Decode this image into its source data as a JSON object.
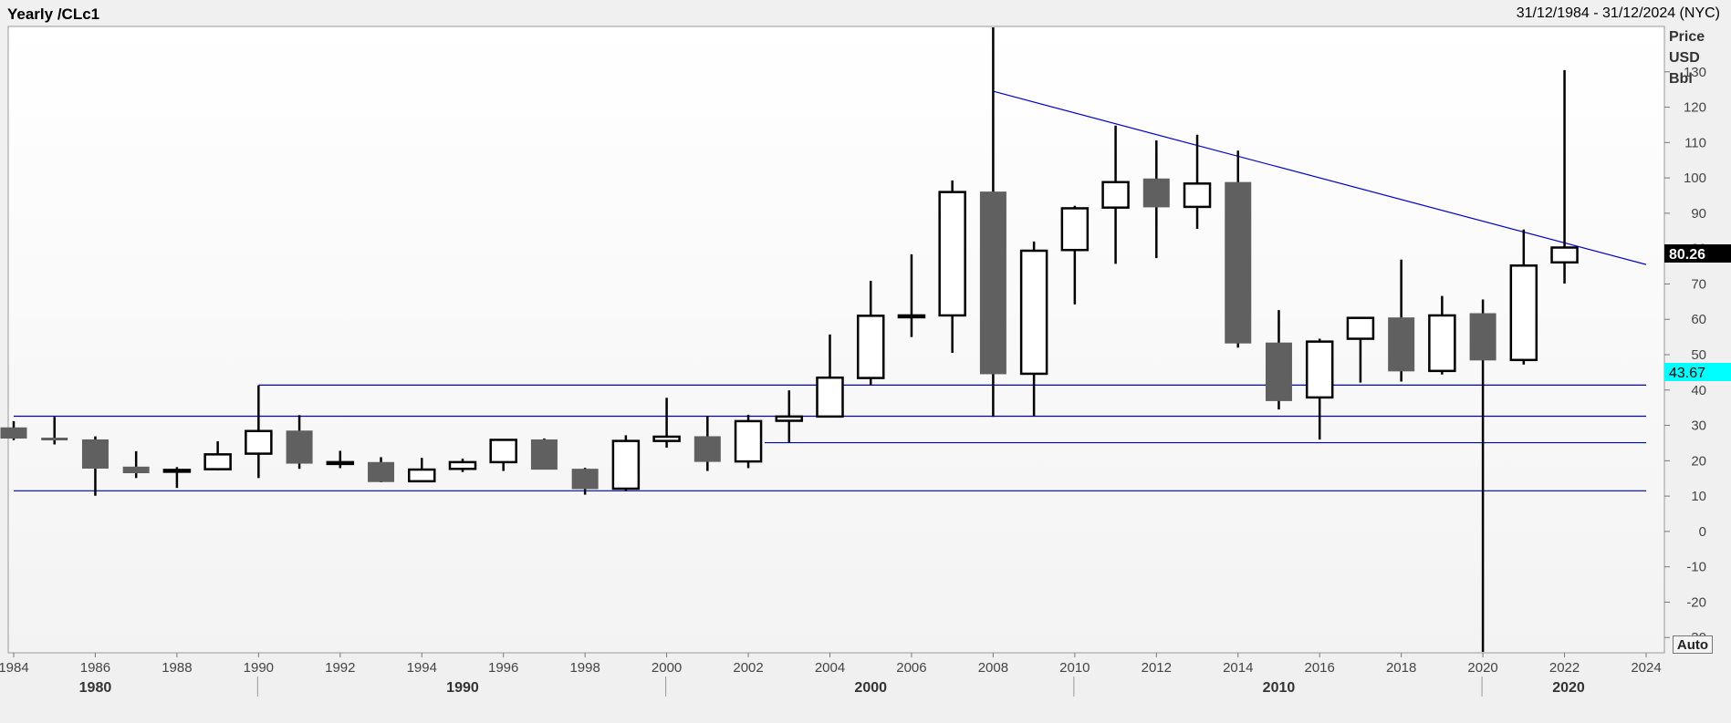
{
  "header": {
    "title": "Yearly /CLc1",
    "date_range": "31/12/1984 - 31/12/2024 (NYC)"
  },
  "yaxis": {
    "unit_lines": [
      "Price",
      "USD",
      "Bbl"
    ],
    "auto_label": "Auto"
  },
  "badges": {
    "last_price": {
      "label": "80.26",
      "value": 80.26,
      "bg": "#000000",
      "fg": "#ffffff"
    },
    "marker": {
      "label": "43.67",
      "value": 43.67,
      "bg": "#00ffff",
      "fg": "#000000"
    }
  },
  "colors": {
    "up_fill": "#ffffff",
    "down_fill": "#606060",
    "wick": "#000000",
    "trendline": "#0000cd",
    "support": "#0000b4"
  },
  "chart_data": {
    "type": "candlestick",
    "title": "Yearly /CLc1",
    "ylabel": "Price USD Bbl",
    "ylim": [
      -40,
      140
    ],
    "yticks": [
      130,
      120,
      110,
      100,
      90,
      80,
      70,
      60,
      50,
      40,
      30,
      20,
      10,
      0,
      -10,
      -20,
      -30
    ],
    "xlim": [
      1984,
      2024
    ],
    "xticks": [
      1984,
      1986,
      1988,
      1990,
      1992,
      1994,
      1996,
      1998,
      2000,
      2002,
      2004,
      2006,
      2008,
      2010,
      2012,
      2014,
      2016,
      2018,
      2020,
      2022,
      2024
    ],
    "decades": [
      {
        "label": "1980",
        "x": 1986
      },
      {
        "label": "1990",
        "x": 1995
      },
      {
        "label": "2000",
        "x": 2005
      },
      {
        "label": "2010",
        "x": 2015
      },
      {
        "label": "2020",
        "x": 2022.1
      }
    ],
    "decade_separators": [
      1990,
      2000,
      2010,
      2020
    ],
    "candles": [
      {
        "year": 1984,
        "open": 29.3,
        "high": 31.2,
        "low": 25.8,
        "close": 26.4
      },
      {
        "year": 1985,
        "open": 26.4,
        "high": 32.4,
        "low": 24.6,
        "close": 26.3
      },
      {
        "year": 1986,
        "open": 25.9,
        "high": 26.9,
        "low": 10.1,
        "close": 17.9
      },
      {
        "year": 1987,
        "open": 18.2,
        "high": 22.7,
        "low": 15.1,
        "close": 16.6
      },
      {
        "year": 1988,
        "open": 17.1,
        "high": 18.2,
        "low": 12.3,
        "close": 17.4
      },
      {
        "year": 1989,
        "open": 17.6,
        "high": 25.5,
        "low": 17.3,
        "close": 21.8
      },
      {
        "year": 1990,
        "open": 22.0,
        "high": 41.3,
        "low": 15.1,
        "close": 28.4
      },
      {
        "year": 1991,
        "open": 28.4,
        "high": 32.9,
        "low": 17.7,
        "close": 19.3
      },
      {
        "year": 1992,
        "open": 19.3,
        "high": 22.8,
        "low": 17.9,
        "close": 19.6
      },
      {
        "year": 1993,
        "open": 19.5,
        "high": 21.0,
        "low": 13.9,
        "close": 14.1
      },
      {
        "year": 1994,
        "open": 14.2,
        "high": 20.8,
        "low": 13.9,
        "close": 17.5
      },
      {
        "year": 1995,
        "open": 17.7,
        "high": 20.6,
        "low": 16.8,
        "close": 19.6
      },
      {
        "year": 1996,
        "open": 19.6,
        "high": 26.1,
        "low": 17.1,
        "close": 25.9
      },
      {
        "year": 1997,
        "open": 25.9,
        "high": 26.3,
        "low": 17.6,
        "close": 17.6
      },
      {
        "year": 1998,
        "open": 17.6,
        "high": 18.0,
        "low": 10.4,
        "close": 12.1
      },
      {
        "year": 1999,
        "open": 12.1,
        "high": 27.2,
        "low": 11.4,
        "close": 25.6
      },
      {
        "year": 2000,
        "open": 25.6,
        "high": 37.8,
        "low": 23.7,
        "close": 26.8
      },
      {
        "year": 2001,
        "open": 26.8,
        "high": 32.7,
        "low": 17.1,
        "close": 19.8
      },
      {
        "year": 2002,
        "open": 19.8,
        "high": 33.0,
        "low": 17.9,
        "close": 31.2
      },
      {
        "year": 2003,
        "open": 31.3,
        "high": 39.9,
        "low": 25.1,
        "close": 32.5
      },
      {
        "year": 2004,
        "open": 32.5,
        "high": 55.7,
        "low": 32.2,
        "close": 43.5
      },
      {
        "year": 2005,
        "open": 43.4,
        "high": 70.9,
        "low": 41.3,
        "close": 61.0
      },
      {
        "year": 2006,
        "open": 61.1,
        "high": 78.4,
        "low": 55.0,
        "close": 61.1
      },
      {
        "year": 2007,
        "open": 61.1,
        "high": 99.3,
        "low": 50.5,
        "close": 96.0
      },
      {
        "year": 2008,
        "open": 96.0,
        "high": 147.3,
        "low": 32.4,
        "close": 44.6
      },
      {
        "year": 2009,
        "open": 44.6,
        "high": 82.0,
        "low": 32.7,
        "close": 79.4
      },
      {
        "year": 2010,
        "open": 79.6,
        "high": 92.1,
        "low": 64.2,
        "close": 91.4
      },
      {
        "year": 2011,
        "open": 91.6,
        "high": 114.8,
        "low": 75.7,
        "close": 98.8
      },
      {
        "year": 2012,
        "open": 99.7,
        "high": 110.6,
        "low": 77.3,
        "close": 91.8
      },
      {
        "year": 2013,
        "open": 91.8,
        "high": 112.2,
        "low": 85.6,
        "close": 98.4
      },
      {
        "year": 2014,
        "open": 98.7,
        "high": 107.7,
        "low": 52.0,
        "close": 53.3
      },
      {
        "year": 2015,
        "open": 53.3,
        "high": 62.6,
        "low": 34.5,
        "close": 37.0
      },
      {
        "year": 2016,
        "open": 37.9,
        "high": 54.5,
        "low": 26.0,
        "close": 53.7
      },
      {
        "year": 2017,
        "open": 54.5,
        "high": 60.5,
        "low": 42.1,
        "close": 60.4
      },
      {
        "year": 2018,
        "open": 60.4,
        "high": 76.9,
        "low": 42.4,
        "close": 45.4
      },
      {
        "year": 2019,
        "open": 45.4,
        "high": 66.6,
        "low": 44.4,
        "close": 61.1
      },
      {
        "year": 2020,
        "open": 61.6,
        "high": 65.6,
        "low": -40.3,
        "close": 48.5
      },
      {
        "year": 2021,
        "open": 48.5,
        "high": 85.4,
        "low": 47.2,
        "close": 75.2
      },
      {
        "year": 2022,
        "open": 76.1,
        "high": 130.5,
        "low": 70.1,
        "close": 80.3
      }
    ],
    "trendline": {
      "x1": 2008,
      "y1": 124.5,
      "x2": 2024,
      "y2": 75.5
    },
    "support_lines": [
      {
        "x1": 1990,
        "x2": 2024,
        "y": 41.4
      },
      {
        "x1": 1984,
        "x2": 2024,
        "y": 32.6
      },
      {
        "x1": 2002.4,
        "x2": 2024,
        "y": 25.1
      },
      {
        "x1": 1984,
        "x2": 2024,
        "y": 11.5
      }
    ]
  }
}
